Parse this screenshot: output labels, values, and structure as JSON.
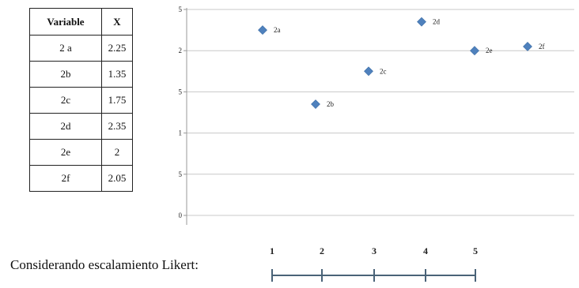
{
  "table": {
    "headers": [
      "Variable",
      "X"
    ],
    "rows": [
      [
        "2 a",
        "2.25"
      ],
      [
        "2b",
        "1.35"
      ],
      [
        "2c",
        "1.75"
      ],
      [
        "2d",
        "2.35"
      ],
      [
        "2e",
        "2"
      ],
      [
        "2f",
        "2.05"
      ]
    ]
  },
  "chart_data": {
    "type": "scatter",
    "title": "",
    "xlabel": "",
    "ylabel": "",
    "ylim": [
      0,
      2.5
    ],
    "yticks": [
      "0",
      "0.5",
      "1",
      "1.5",
      "2",
      "2.5"
    ],
    "grid": true,
    "marker_color": "#4f81bd",
    "points": [
      {
        "label": "2a",
        "x": 1,
        "y": 2.25
      },
      {
        "label": "2b",
        "x": 2,
        "y": 1.35
      },
      {
        "label": "2c",
        "x": 3,
        "y": 1.75
      },
      {
        "label": "2d",
        "x": 4,
        "y": 2.35
      },
      {
        "label": "2e",
        "x": 5,
        "y": 2.0
      },
      {
        "label": "2f",
        "x": 6,
        "y": 2.05
      }
    ]
  },
  "likert": {
    "label": "Considerando escalamiento Likert:",
    "ticks": [
      "1",
      "2",
      "3",
      "4",
      "5"
    ],
    "line_color": "#4a6378"
  }
}
